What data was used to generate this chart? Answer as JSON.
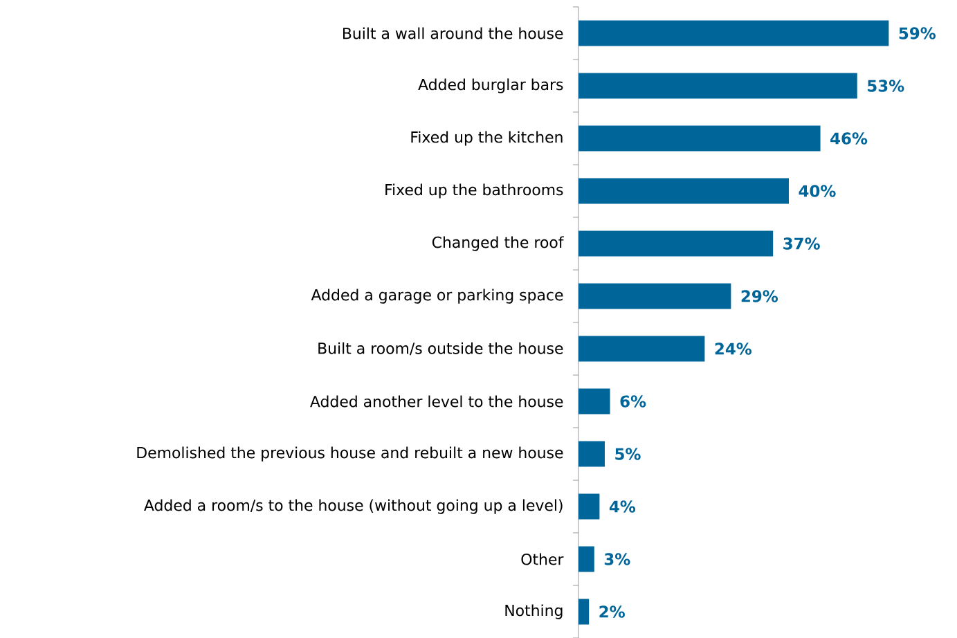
{
  "chart_data": {
    "type": "bar",
    "orientation": "horizontal",
    "categories": [
      "Built a wall around the house",
      "Added burglar bars",
      "Fixed up the kitchen",
      "Fixed up the bathrooms",
      "Changed the roof",
      "Added a garage or parking space",
      "Built a room/s outside the house",
      "Added another level to the house",
      "Demolished the previous house and rebuilt a new house",
      "Added a room/s to the house (without going up a level)",
      "Other",
      "Nothing"
    ],
    "values": [
      59,
      53,
      46,
      40,
      37,
      29,
      24,
      6,
      5,
      4,
      3,
      2
    ],
    "value_labels": [
      "59%",
      "53%",
      "46%",
      "40%",
      "37%",
      "29%",
      "24%",
      "6%",
      "5%",
      "4%",
      "3%",
      "2%"
    ],
    "color": "#00669a"
  }
}
